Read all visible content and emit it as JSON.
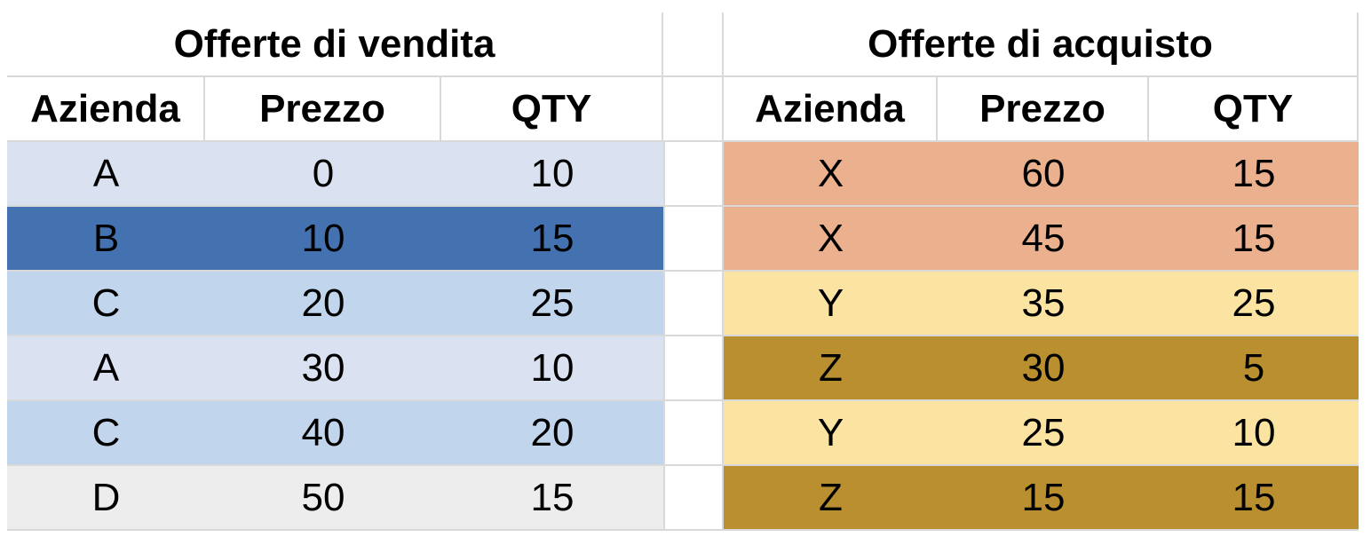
{
  "sell": {
    "title": "Offerte di vendita",
    "headers": [
      "Azienda",
      "Prezzo",
      "QTY"
    ],
    "rows": [
      {
        "cells": [
          "A",
          "0",
          "10"
        ],
        "color": "#dae1f0"
      },
      {
        "cells": [
          "B",
          "10",
          "15"
        ],
        "color": "#4472b0"
      },
      {
        "cells": [
          "C",
          "20",
          "25"
        ],
        "color": "#c1d6ec"
      },
      {
        "cells": [
          "A",
          "30",
          "10"
        ],
        "color": "#dae1f0"
      },
      {
        "cells": [
          "C",
          "40",
          "20"
        ],
        "color": "#c1d6ec"
      },
      {
        "cells": [
          "D",
          "50",
          "15"
        ],
        "color": "#ededed"
      }
    ]
  },
  "buy": {
    "title": "Offerte di acquisto",
    "headers": [
      "Azienda",
      "Prezzo",
      "QTY"
    ],
    "rows": [
      {
        "cells": [
          "X",
          "60",
          "15"
        ],
        "color": "#ebb08d"
      },
      {
        "cells": [
          "X",
          "45",
          "15"
        ],
        "color": "#ebb08d"
      },
      {
        "cells": [
          "Y",
          "35",
          "25"
        ],
        "color": "#fbe3a1"
      },
      {
        "cells": [
          "Z",
          "30",
          "5"
        ],
        "color": "#b98f2f"
      },
      {
        "cells": [
          "Y",
          "25",
          "10"
        ],
        "color": "#fbe3a1"
      },
      {
        "cells": [
          "Z",
          "15",
          "15"
        ],
        "color": "#b98f2f"
      }
    ]
  }
}
